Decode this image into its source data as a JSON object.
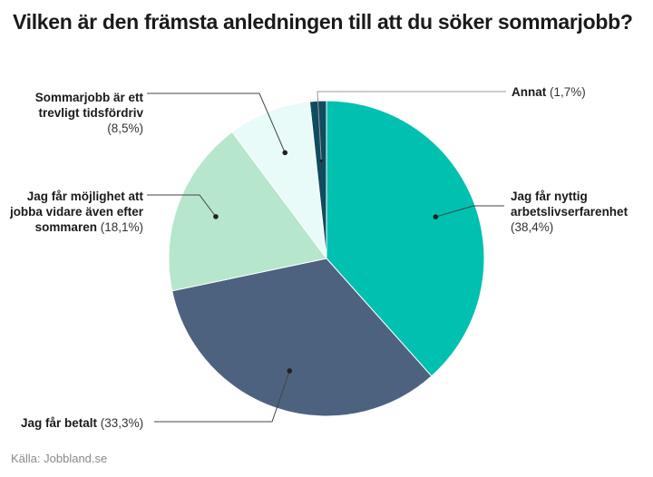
{
  "chart_data": {
    "type": "pie",
    "title": "Vilken är den främsta anledningen till att du söker sommarjobb?",
    "start": "top",
    "direction": "clockwise",
    "slices": [
      {
        "label": "Jag får nyttig arbetslivserfarenhet",
        "value": 38.4,
        "value_text": "(38,4%)",
        "color": "#00c1b0"
      },
      {
        "label": "Jag får betalt",
        "value": 33.3,
        "value_text": "(33,3%)",
        "color": "#4d627f"
      },
      {
        "label": "Jag får möjlighet att jobba vidare även efter sommaren",
        "value": 18.1,
        "value_text": "(18,1%)",
        "color": "#b6e6cb"
      },
      {
        "label": "Sommarjobb är ett trevligt tidsfördriv",
        "value": 8.5,
        "value_text": "(8,5%)",
        "color": "#e8fbf8"
      },
      {
        "label": "Annat",
        "value": 1.7,
        "value_text": "(1,7%)",
        "color": "#0f4c5f"
      }
    ],
    "source": "Källa: Jobbland.se"
  }
}
